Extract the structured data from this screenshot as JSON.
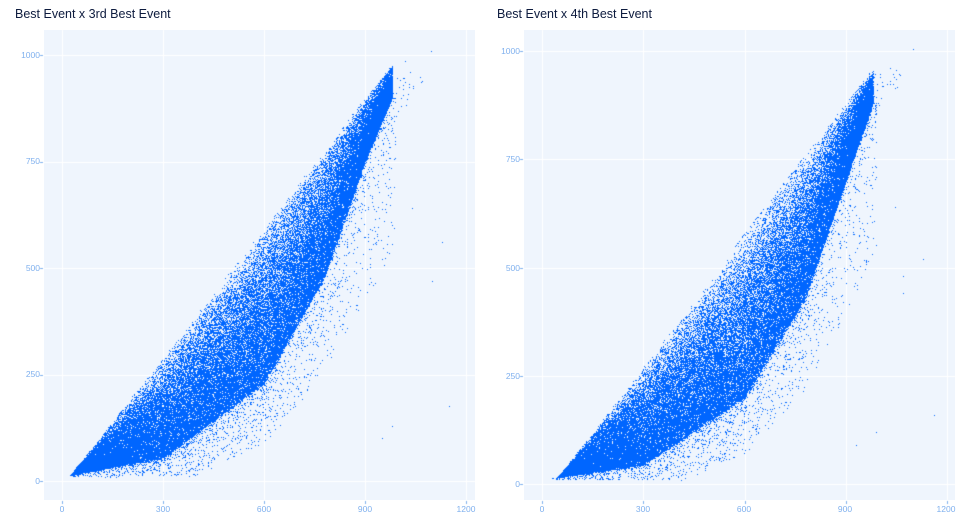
{
  "chart_data": [
    {
      "type": "scatter",
      "title": "Best Event x 3rd Best Event",
      "xlabel": "",
      "ylabel": "",
      "xlim": [
        -45,
        1225
      ],
      "ylim": [
        -65,
        1060
      ],
      "x_ticks": [
        0,
        300,
        600,
        900,
        1200
      ],
      "y_ticks": [
        0,
        250,
        500,
        750,
        1000
      ],
      "grid": true,
      "legend": "none",
      "marker_color": "#0066ff",
      "description": "Dense point cloud bounded above by line y ≈ x; lower edge curves from ~(30,20) through ~(600,230) to ~(960,900); sparse outliers to the right up to x≈1150.",
      "upper_bound": [
        [
          20,
          10
        ],
        [
          1000,
          1000
        ]
      ],
      "lower_bound": [
        [
          30,
          15
        ],
        [
          300,
          55
        ],
        [
          600,
          230
        ],
        [
          780,
          480
        ],
        [
          900,
          750
        ],
        [
          980,
          900
        ]
      ],
      "outliers": [
        [
          1095,
          1010
        ],
        [
          1020,
          985
        ],
        [
          1035,
          960
        ],
        [
          1150,
          175
        ],
        [
          1130,
          560
        ],
        [
          1100,
          470
        ],
        [
          980,
          130
        ],
        [
          950,
          100
        ],
        [
          1040,
          640
        ]
      ]
    },
    {
      "type": "scatter",
      "title": "Best Event x 4th Best Event",
      "xlabel": "",
      "ylabel": "",
      "xlim": [
        -45,
        1225
      ],
      "ylim": [
        -65,
        1060
      ],
      "x_ticks": [
        0,
        300,
        600,
        900,
        1200
      ],
      "y_ticks": [
        0,
        250,
        500,
        750,
        1000
      ],
      "grid": true,
      "legend": "none",
      "marker_color": "#0066ff",
      "description": "Dense point cloud bounded above by line y ≈ x - 40; lower edge curves from ~(45,20) through ~(600,200) to ~(960,880); sparse outliers to the right up to x≈1160.",
      "upper_bound": [
        [
          40,
          10
        ],
        [
          1000,
          975
        ]
      ],
      "lower_bound": [
        [
          45,
          15
        ],
        [
          300,
          45
        ],
        [
          600,
          200
        ],
        [
          780,
          430
        ],
        [
          900,
          700
        ],
        [
          980,
          880
        ]
      ],
      "outliers": [
        [
          1100,
          1005
        ],
        [
          1030,
          960
        ],
        [
          1050,
          955
        ],
        [
          1160,
          160
        ],
        [
          1130,
          520
        ],
        [
          1070,
          480
        ],
        [
          1070,
          440
        ],
        [
          990,
          120
        ],
        [
          930,
          90
        ],
        [
          1045,
          640
        ]
      ]
    }
  ],
  "panels": [
    {
      "title": "Best Event x 3rd Best Event",
      "y_labels": [
        "1000",
        "750",
        "500",
        "250",
        "0"
      ],
      "x_labels": [
        "0",
        "300",
        "600",
        "900",
        "1200"
      ]
    },
    {
      "title": "Best Event x 4th Best Event",
      "y_labels": [
        "1000",
        "750",
        "500",
        "250",
        "0"
      ],
      "x_labels": [
        "0",
        "300",
        "600",
        "900",
        "1200"
      ]
    }
  ]
}
